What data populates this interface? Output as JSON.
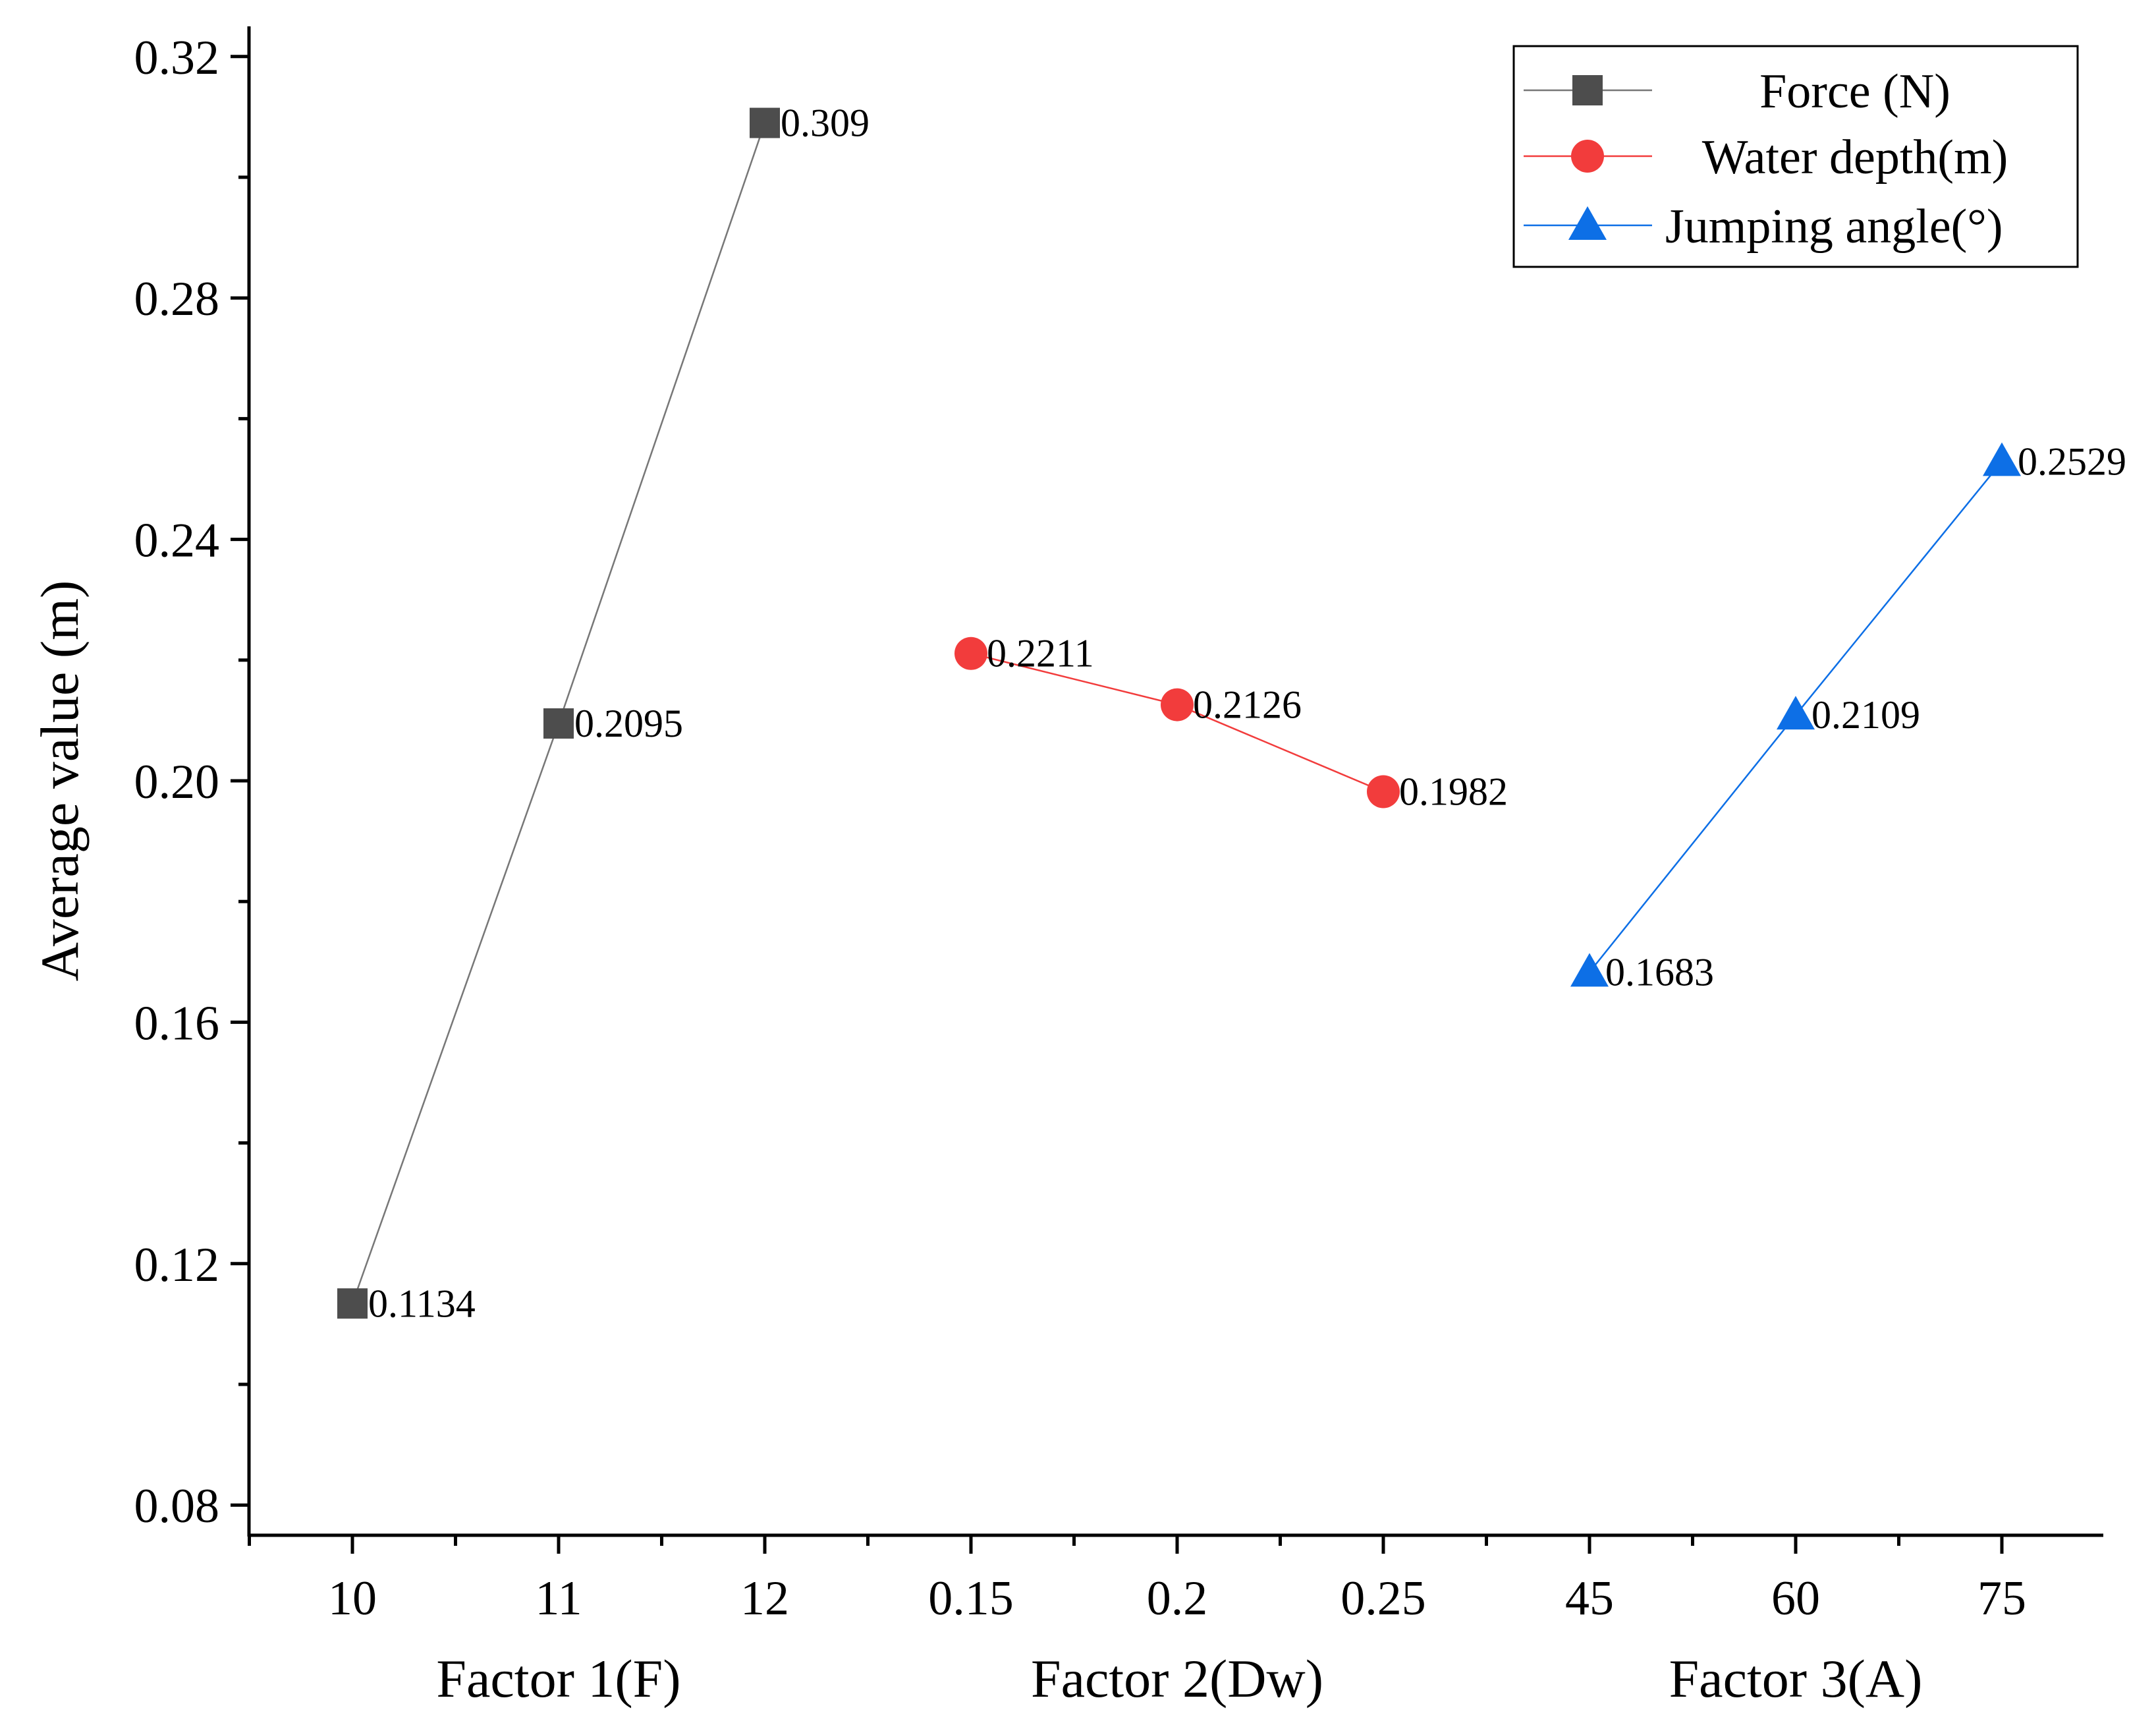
{
  "chart_data": {
    "type": "line",
    "ylabel": "Average value (m)",
    "ylim": [
      0.075,
      0.325
    ],
    "yticks": [
      0.08,
      0.12,
      0.16,
      0.2,
      0.24,
      0.28,
      0.32
    ],
    "ytick_labels": [
      "0.08",
      "0.12",
      "0.16",
      "0.20",
      "0.24",
      "0.28",
      "0.32"
    ],
    "xlabels": [
      "Factor 1(F)",
      "Factor 2(Dw)",
      "Factor 3(A)"
    ],
    "categories": [
      "10",
      "11",
      "12",
      "0.15",
      "0.2",
      "0.25",
      "45",
      "60",
      "75"
    ],
    "legend_position": "top-right",
    "series": [
      {
        "name": "Force (N)",
        "color": "#4d4d4d",
        "line_color": "#777777",
        "marker": "square",
        "positions": [
          0,
          1,
          2
        ],
        "values": [
          0.1134,
          0.2095,
          0.309
        ],
        "labels": [
          "0.1134",
          "0.2095",
          "0.309"
        ]
      },
      {
        "name": "Water depth(m)",
        "color": "#f23c3c",
        "line_color": "#f23c3c",
        "marker": "circle",
        "positions": [
          3,
          4,
          5
        ],
        "values": [
          0.2211,
          0.2126,
          0.1982
        ],
        "labels": [
          "0.2211",
          "0.2126",
          "0.1982"
        ]
      },
      {
        "name": "Jumping angle(°)",
        "color": "#0d6fe6",
        "line_color": "#0d6fe6",
        "marker": "triangle",
        "positions": [
          6,
          7,
          8
        ],
        "values": [
          0.1683,
          0.2109,
          0.2529
        ],
        "labels": [
          "0.1683",
          "0.2109",
          "0.2529"
        ]
      }
    ]
  }
}
